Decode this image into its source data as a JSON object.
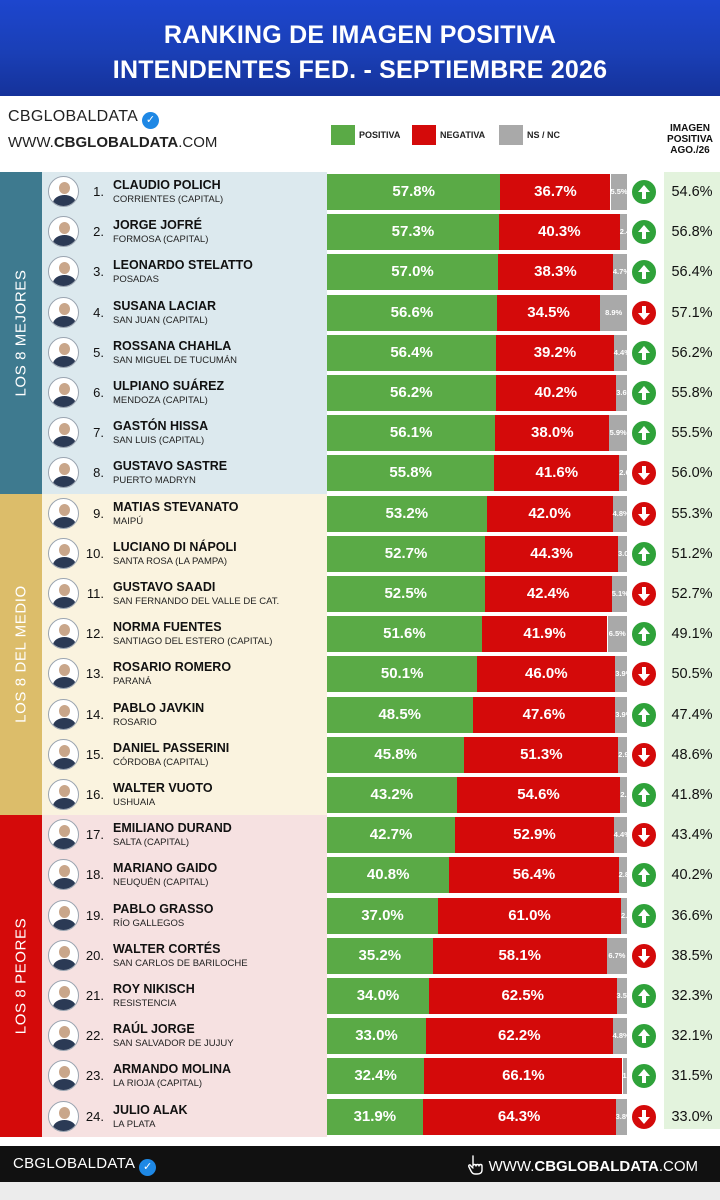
{
  "header": {
    "title_line1": "RANKING DE IMAGEN POSITIVA",
    "title_line2": "INTENDENTES FED. - SEPTIEMBRE 2026"
  },
  "brand": {
    "name": "CBGLOBALDATA",
    "url_prefix": "WWW.",
    "url_bold": "CBGLOBALDATA",
    "url_suffix": ".COM"
  },
  "legend": [
    {
      "label": "POSITIVA",
      "color": "#5aaa46"
    },
    {
      "label": "NEGATIVA",
      "color": "#d40a0a"
    },
    {
      "label": "NS / NC",
      "color": "#a9a9a9"
    }
  ],
  "previous_column": {
    "line1": "IMAGEN",
    "line2": "POSITIVA",
    "line3": "AGO./26"
  },
  "groups": [
    {
      "label": "LOS 8 MEJORES",
      "band_color": "#3e7a8f",
      "bg_color": "#dce9ee"
    },
    {
      "label": "LOS 8 DEL MEDIO",
      "band_color": "#dcbd6a",
      "bg_color": "#faf3df"
    },
    {
      "label": "LOS 8 PEORES",
      "band_color": "#d40a0a",
      "bg_color": "#f6e1e1"
    }
  ],
  "colors": {
    "positive": "#5aaa46",
    "negative": "#d40a0a",
    "nsnc": "#a9a9a9",
    "up": "#2fa23a",
    "down": "#d40a0a"
  },
  "chart_data": {
    "type": "bar",
    "stacked": true,
    "orientation": "horizontal",
    "title": "RANKING DE IMAGEN POSITIVA INTENDENTES FED. - SEPTIEMBRE 2026",
    "series_names": [
      "POSITIVA",
      "NEGATIVA",
      "NS / NC"
    ],
    "xlim": [
      0,
      100
    ],
    "rows": [
      {
        "rank": "1.",
        "name": "CLAUDIO POLICH",
        "city": "CORRIENTES (CAPITAL)",
        "positive": 57.8,
        "negative": 36.7,
        "nsnc": 5.5,
        "pos_label": "57.8%",
        "neg_label": "36.7%",
        "ns_label": "5.5%",
        "trend": "up",
        "previous": "54.6%"
      },
      {
        "rank": "2.",
        "name": "JORGE JOFRÉ",
        "city": "FORMOSA (CAPITAL)",
        "positive": 57.3,
        "negative": 40.3,
        "nsnc": 2.4,
        "pos_label": "57.3%",
        "neg_label": "40.3%",
        "ns_label": "2.4",
        "trend": "up",
        "previous": "56.8%"
      },
      {
        "rank": "3.",
        "name": "LEONARDO STELATTO",
        "city": "POSADAS",
        "positive": 57.0,
        "negative": 38.3,
        "nsnc": 4.7,
        "pos_label": "57.0%",
        "neg_label": "38.3%",
        "ns_label": "4.7%",
        "trend": "up",
        "previous": "56.4%"
      },
      {
        "rank": "4.",
        "name": "SUSANA LACIAR",
        "city": "SAN JUAN (CAPITAL)",
        "positive": 56.6,
        "negative": 34.5,
        "nsnc": 8.9,
        "pos_label": "56.6%",
        "neg_label": "34.5%",
        "ns_label": "8.9%",
        "trend": "down",
        "previous": "57.1%"
      },
      {
        "rank": "5.",
        "name": "ROSSANA CHAHLA",
        "city": "SAN MIGUEL DE TUCUMÁN",
        "positive": 56.4,
        "negative": 39.2,
        "nsnc": 4.4,
        "pos_label": "56.4%",
        "neg_label": "39.2%",
        "ns_label": "4.4%",
        "trend": "up",
        "previous": "56.2%"
      },
      {
        "rank": "6.",
        "name": "ULPIANO SUÁREZ",
        "city": "MENDOZA (CAPITAL)",
        "positive": 56.2,
        "negative": 40.2,
        "nsnc": 3.6,
        "pos_label": "56.2%",
        "neg_label": "40.2%",
        "ns_label": "3.6%",
        "trend": "up",
        "previous": "55.8%"
      },
      {
        "rank": "7.",
        "name": "GASTÓN HISSA",
        "city": "SAN LUIS (CAPITAL)",
        "positive": 56.1,
        "negative": 38.0,
        "nsnc": 5.9,
        "pos_label": "56.1%",
        "neg_label": "38.0%",
        "ns_label": "5.9%",
        "trend": "up",
        "previous": "55.5%"
      },
      {
        "rank": "8.",
        "name": "GUSTAVO SASTRE",
        "city": "PUERTO MADRYN",
        "positive": 55.8,
        "negative": 41.6,
        "nsnc": 2.6,
        "pos_label": "55.8%",
        "neg_label": "41.6%",
        "ns_label": "2.6",
        "trend": "down",
        "previous": "56.0%"
      },
      {
        "rank": "9.",
        "name": "MATIAS STEVANATO",
        "city": "MAIPÚ",
        "positive": 53.2,
        "negative": 42.0,
        "nsnc": 4.8,
        "pos_label": "53.2%",
        "neg_label": "42.0%",
        "ns_label": "4.8%",
        "trend": "down",
        "previous": "55.3%"
      },
      {
        "rank": "10.",
        "name": "LUCIANO DI NÁPOLI",
        "city": "SANTA ROSA (LA PAMPA)",
        "positive": 52.7,
        "negative": 44.3,
        "nsnc": 3.0,
        "pos_label": "52.7%",
        "neg_label": "44.3%",
        "ns_label": "3.0%",
        "trend": "up",
        "previous": "51.2%"
      },
      {
        "rank": "11.",
        "name": "GUSTAVO SAADI",
        "city": "SAN FERNANDO DEL VALLE DE CAT.",
        "positive": 52.5,
        "negative": 42.4,
        "nsnc": 5.1,
        "pos_label": "52.5%",
        "neg_label": "42.4%",
        "ns_label": "5.1%",
        "trend": "down",
        "previous": "52.7%"
      },
      {
        "rank": "12.",
        "name": "NORMA FUENTES",
        "city": "SANTIAGO DEL ESTERO (CAPITAL)",
        "positive": 51.6,
        "negative": 41.9,
        "nsnc": 6.5,
        "pos_label": "51.6%",
        "neg_label": "41.9%",
        "ns_label": "6.5%",
        "trend": "up",
        "previous": "49.1%"
      },
      {
        "rank": "13.",
        "name": "ROSARIO ROMERO",
        "city": "PARANÁ",
        "positive": 50.1,
        "negative": 46.0,
        "nsnc": 3.9,
        "pos_label": "50.1%",
        "neg_label": "46.0%",
        "ns_label": "3.9%",
        "trend": "down",
        "previous": "50.5%"
      },
      {
        "rank": "14.",
        "name": "PABLO JAVKIN",
        "city": "ROSARIO",
        "positive": 48.5,
        "negative": 47.6,
        "nsnc": 3.9,
        "pos_label": "48.5%",
        "neg_label": "47.6%",
        "ns_label": "3.9%",
        "trend": "up",
        "previous": "47.4%"
      },
      {
        "rank": "15.",
        "name": "DANIEL PASSERINI",
        "city": "CÓRDOBA (CAPITAL)",
        "positive": 45.8,
        "negative": 51.3,
        "nsnc": 2.9,
        "pos_label": "45.8%",
        "neg_label": "51.3%",
        "ns_label": "2.9",
        "trend": "down",
        "previous": "48.6%"
      },
      {
        "rank": "16.",
        "name": "WALTER VUOTO",
        "city": "USHUAIA",
        "positive": 43.2,
        "negative": 54.6,
        "nsnc": 2.2,
        "pos_label": "43.2%",
        "neg_label": "54.6%",
        "ns_label": "2.2",
        "trend": "up",
        "previous": "41.8%"
      },
      {
        "rank": "17.",
        "name": "EMILIANO DURAND",
        "city": "SALTA (CAPITAL)",
        "positive": 42.7,
        "negative": 52.9,
        "nsnc": 4.4,
        "pos_label": "42.7%",
        "neg_label": "52.9%",
        "ns_label": "4.4%",
        "trend": "down",
        "previous": "43.4%"
      },
      {
        "rank": "18.",
        "name": "MARIANO GAIDO",
        "city": "NEUQUÉN (CAPITAL)",
        "positive": 40.8,
        "negative": 56.4,
        "nsnc": 2.8,
        "pos_label": "40.8%",
        "neg_label": "56.4%",
        "ns_label": "2.8",
        "trend": "up",
        "previous": "40.2%"
      },
      {
        "rank": "19.",
        "name": "PABLO GRASSO",
        "city": "RÍO GALLEGOS",
        "positive": 37.0,
        "negative": 61.0,
        "nsnc": 2.0,
        "pos_label": "37.0%",
        "neg_label": "61.0%",
        "ns_label": "2.0",
        "trend": "up",
        "previous": "36.6%"
      },
      {
        "rank": "20.",
        "name": "WALTER CORTÉS",
        "city": "SAN CARLOS DE BARILOCHE",
        "positive": 35.2,
        "negative": 58.1,
        "nsnc": 6.7,
        "pos_label": "35.2%",
        "neg_label": "58.1%",
        "ns_label": "6.7%",
        "trend": "down",
        "previous": "38.5%"
      },
      {
        "rank": "21.",
        "name": "ROY NIKISCH",
        "city": "RESISTENCIA",
        "positive": 34.0,
        "negative": 62.5,
        "nsnc": 3.5,
        "pos_label": "34.0%",
        "neg_label": "62.5%",
        "ns_label": "3.5%",
        "trend": "up",
        "previous": "32.3%"
      },
      {
        "rank": "22.",
        "name": "RAÚL JORGE",
        "city": "SAN SALVADOR DE JUJUY",
        "positive": 33.0,
        "negative": 62.2,
        "nsnc": 4.8,
        "pos_label": "33.0%",
        "neg_label": "62.2%",
        "ns_label": "4.8%",
        "trend": "up",
        "previous": "32.1%"
      },
      {
        "rank": "23.",
        "name": "ARMANDO MOLINA",
        "city": "LA RIOJA (CAPITAL)",
        "positive": 32.4,
        "negative": 66.1,
        "nsnc": 1.5,
        "pos_label": "32.4%",
        "neg_label": "66.1%",
        "ns_label": "1.5",
        "trend": "up",
        "previous": "31.5%"
      },
      {
        "rank": "24.",
        "name": "JULIO ALAK",
        "city": "LA PLATA",
        "positive": 31.9,
        "negative": 64.3,
        "nsnc": 3.8,
        "pos_label": "31.9%",
        "neg_label": "64.3%",
        "ns_label": "3.8%",
        "trend": "down",
        "previous": "33.0%"
      }
    ]
  },
  "footer": {
    "left": "CBGLOBALDATA",
    "url_prefix": "WWW.",
    "url_bold": "CBGLOBALDATA",
    "url_suffix": ".COM"
  }
}
